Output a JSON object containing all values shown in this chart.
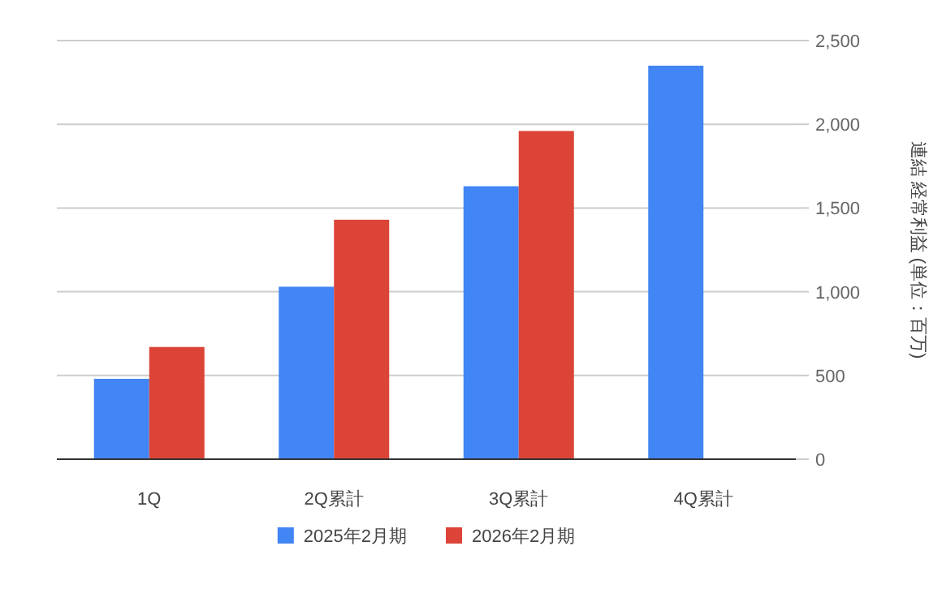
{
  "chart_data": {
    "type": "bar",
    "categories": [
      "1Q",
      "2Q累計",
      "3Q累計",
      "4Q累計"
    ],
    "series": [
      {
        "name": "2025年2月期",
        "color": "#4285f4",
        "values": [
          480,
          1030,
          1630,
          2350
        ]
      },
      {
        "name": "2026年2月期",
        "color": "#db4437",
        "values": [
          670,
          1430,
          1960,
          null
        ]
      }
    ],
    "ylabel": "連結 経常利益 (単位：百万)",
    "ylim": [
      0,
      2500
    ],
    "yticks": [
      0,
      {
        "value": 500,
        "label": "500"
      },
      {
        "value": 1000,
        "label": "1,000"
      },
      {
        "value": 1500,
        "label": "1,500"
      },
      {
        "value": 2000,
        "label": "2,000"
      },
      {
        "value": 2500,
        "label": "2,500"
      }
    ],
    "grid": "y",
    "legend": "bottom"
  }
}
